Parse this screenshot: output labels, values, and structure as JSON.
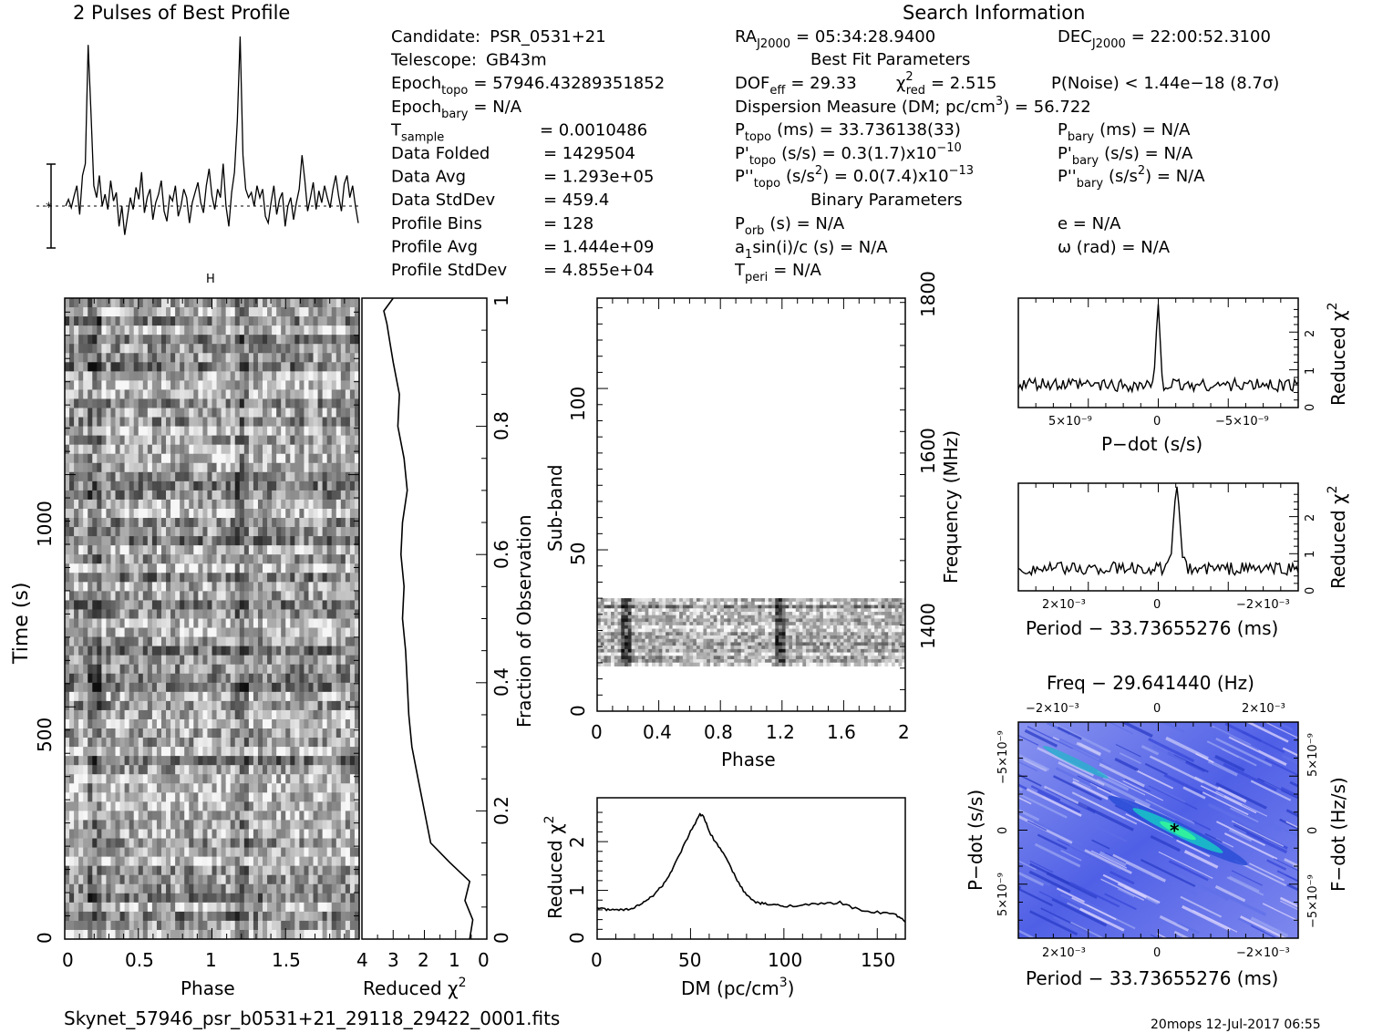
{
  "page": {
    "title": "2 Pulses of Best Profile",
    "search_title": "Search Information",
    "filename": "Skynet_57946_psr_b0531+21_29118_29422_0001.fits",
    "footer": "20mops  12-Jul-2017 06:55"
  },
  "info": {
    "col1": [
      {
        "label": "Candidate:",
        "sub": "",
        "value": "PSR_0531+21"
      },
      {
        "label": "Telescope:",
        "sub": "",
        "value": "GB43m"
      },
      {
        "label": "Epoch",
        "sub": "topo",
        "value": "= 57946.43289351852"
      },
      {
        "label": "Epoch",
        "sub": "bary",
        "value": "= N/A"
      },
      {
        "label": "T",
        "sub": "sample",
        "value": "=   0.0010486"
      },
      {
        "label": "Data Folded",
        "sub": "",
        "value": "=   1429504"
      },
      {
        "label": "Data Avg",
        "sub": "",
        "value": "=   1.293e+05"
      },
      {
        "label": "Data StdDev",
        "sub": "",
        "value": "=   459.4"
      },
      {
        "label": "Profile Bins",
        "sub": "",
        "value": "=   128"
      },
      {
        "label": "Profile Avg",
        "sub": "",
        "value": "=   1.444e+09"
      },
      {
        "label": "Profile StdDev",
        "sub": "",
        "value": "=   4.855e+04"
      }
    ],
    "ra": "RA",
    "ra_sub": "J2000",
    "ra_value": "= 05:34:28.9400",
    "dec": "DEC",
    "dec_sub": "J2000",
    "dec_value": "= 22:00:52.3100",
    "best_fit_title": "Best Fit Parameters",
    "dof": "DOF",
    "dof_sub": "eff",
    "dof_value": "= 29.33",
    "chi": "χ",
    "chi_sup": "2",
    "chi_sub": "red",
    "chi_value": "= 2.515",
    "pnoise": "P(Noise) < 1.44e−18   (8.7σ)",
    "dm_line": "Dispersion Measure (DM; pc/cm",
    "dm_sup": "3",
    "dm_value": ") = 56.722",
    "ptopo": "P",
    "ptopo_sub": "topo",
    "ptopo_value": "(ms) =  33.736138(33)",
    "pbary": "P",
    "pbary_sub": "bary",
    "pbary_value": "(ms) = N/A",
    "pdtopo": "P'",
    "pdtopo_sub": "topo",
    "pdtopo_value": "(s/s) =   0.3(1.7)x10",
    "pdtopo_exp": "−10",
    "pdbary": "P'",
    "pdbary_sub": "bary",
    "pdbary_value": "(s/s) = N/A",
    "pddtopo": "P''",
    "pddtopo_sub": "topo",
    "pddtopo_value": "(s/s",
    "pddtopo_sup": "2",
    "pddtopo_value2": ") = 0.0(7.4)x10",
    "pddtopo_exp": "−13",
    "pddbary": "P''",
    "pddbary_sub": "bary",
    "pddbary_value": "(s/s",
    "pddbary_sup": "2",
    "pddbary_value2": ") = N/A",
    "binary_title": "Binary Parameters",
    "porb": "P",
    "porb_sub": "orb",
    "porb_value": "(s) = N/A",
    "e_value": "e = N/A",
    "a1": "a",
    "a1_sub": "1",
    "a1_value": "sin(i)/c (s) = N/A",
    "omega_value": "ω (rad) = N/A",
    "tperi": "T",
    "tperi_sub": "peri",
    "tperi_value": "= N/A"
  },
  "axes": {
    "time_label": "Time (s)",
    "phase_label": "Phase",
    "redchi_label": "Reduced χ",
    "redchi_sup": "2",
    "fraction_label": "Fraction of Observation",
    "subband_label": "Sub-band",
    "frequency_label": "Frequency (MHz)",
    "dm_label": "DM (pc/cm",
    "dm_sup": "3",
    "dm_close": ")",
    "pdot_label": "P−dot (s/s)",
    "period_label": "Period − 33.73655276 (ms)",
    "freq_title": "Freq − 29.641440 (Hz)",
    "fdot_label": "F−dot (Hz/s)",
    "profile_marker": "H"
  },
  "chart_data": [
    {
      "id": "profile",
      "type": "line",
      "title": "2 Pulses of Best Profile",
      "x": [
        0,
        2
      ],
      "peaks_phase": [
        0.18,
        1.18
      ],
      "points": [
        0.0,
        0.04,
        -0.01,
        0.06,
        0.12,
        -0.05,
        0.18,
        0.25,
        0.95,
        0.55,
        0.12,
        0.05,
        0.18,
        0.0,
        0.07,
        -0.02,
        0.15,
        0.03,
        0.08,
        -0.12,
        0.0,
        -0.17,
        -0.06,
        0.05,
        -0.02,
        0.11,
        0.04,
        0.2,
        -0.04,
        0.05,
        0.1,
        -0.08,
        0.02,
        0.07,
        0.15,
        -0.03,
        -0.09,
        0.06,
        0.03,
        0.12,
        -0.06,
        0.0,
        0.1,
        0.05,
        -0.1,
        0.02,
        0.08,
        0.14,
        0.02,
        -0.04,
        0.12,
        0.22,
        0.06,
        -0.02,
        0.1,
        0.05,
        0.25,
        0.0,
        -0.12,
        0.08,
        0.2,
        0.5,
        1.0,
        0.3,
        0.1,
        0.05,
        0.08,
        0.0,
        0.12,
        0.05,
        0.1,
        -0.06,
        -0.1,
        0.02,
        0.12,
        -0.05,
        0.04,
        0.08,
        -0.12,
        0.0,
        0.05,
        -0.08,
        0.02,
        0.1,
        0.3,
        0.15,
        -0.03,
        0.05,
        0.14,
        -0.02,
        0.09,
        0.02,
        0.12,
        0.05,
        -0.01,
        0.1,
        0.18,
        0.06,
        -0.03,
        0.13,
        0.18,
        0.05,
        0.12,
        0.0,
        -0.1
      ]
    },
    {
      "id": "time_phase",
      "type": "heatmap",
      "xlabel": "Phase",
      "ylabel": "Time (s)",
      "xlim": [
        0,
        2
      ],
      "ylim": [
        0,
        1380
      ],
      "xticks": [
        "0",
        "0.5",
        "1",
        "1.5"
      ],
      "yticks": [
        "0",
        "500",
        "1000"
      ]
    },
    {
      "id": "redchi_time",
      "type": "line",
      "xlabel": "Reduced χ²",
      "ylabel": "Fraction of Observation",
      "xlim": [
        4,
        0
      ],
      "ylim": [
        0,
        1
      ],
      "xticks": [
        "4",
        "3",
        "2",
        "1",
        "0"
      ],
      "yticks": [
        "0",
        "0.2",
        "0.4",
        "0.6",
        "0.8",
        "1"
      ],
      "fraction": [
        0.0,
        0.03,
        0.06,
        0.09,
        0.12,
        0.15,
        0.2,
        0.25,
        0.3,
        0.35,
        0.4,
        0.45,
        0.5,
        0.55,
        0.6,
        0.65,
        0.7,
        0.75,
        0.8,
        0.85,
        0.9,
        0.93,
        0.96,
        0.98,
        1.0
      ],
      "redchi": [
        0.55,
        0.45,
        0.7,
        0.55,
        1.2,
        1.8,
        2.0,
        2.2,
        2.4,
        2.5,
        2.55,
        2.6,
        2.7,
        2.65,
        2.75,
        2.7,
        2.55,
        2.65,
        2.85,
        2.8,
        3.0,
        3.1,
        3.2,
        3.3,
        3.0
      ]
    },
    {
      "id": "subband_phase",
      "type": "heatmap",
      "xlabel": "Phase",
      "ylabel": "Sub-band",
      "ylabel_right": "Frequency (MHz)",
      "xlim": [
        0,
        2
      ],
      "ylim": [
        0,
        128
      ],
      "xticks": [
        "0",
        "0.4",
        "0.8",
        "1.2",
        "1.6",
        "2"
      ],
      "yticks": [
        "0",
        "50",
        "100"
      ],
      "freq_ticks": [
        "1400",
        "1600",
        "1800"
      ],
      "filled_subbands": [
        14,
        35
      ]
    },
    {
      "id": "dm_curve",
      "type": "line",
      "xlabel": "DM (pc/cm³)",
      "ylabel": "Reduced χ²",
      "xlim": [
        0,
        165
      ],
      "ylim": [
        0,
        2.9
      ],
      "xticks": [
        "0",
        "50",
        "100",
        "150"
      ],
      "yticks": [
        "0",
        "1",
        "2"
      ],
      "x": [
        0,
        5,
        10,
        15,
        20,
        25,
        30,
        35,
        40,
        45,
        50,
        55,
        57,
        60,
        65,
        70,
        75,
        80,
        85,
        90,
        95,
        100,
        110,
        120,
        130,
        140,
        150,
        160,
        165
      ],
      "y": [
        0.65,
        0.6,
        0.62,
        0.6,
        0.65,
        0.75,
        0.9,
        1.1,
        1.4,
        1.8,
        2.2,
        2.55,
        2.52,
        2.2,
        1.9,
        1.6,
        1.2,
        0.9,
        0.75,
        0.72,
        0.7,
        0.68,
        0.7,
        0.72,
        0.75,
        0.6,
        0.55,
        0.5,
        0.35
      ]
    },
    {
      "id": "pdot_curve",
      "type": "line",
      "xlabel": "P−dot (s/s)",
      "ylabel": "Reduced χ²",
      "xlim": [
        8.5e-09,
        -8.5e-09
      ],
      "ylim": [
        0,
        2.9
      ],
      "xticks": [
        "5×10⁻⁹",
        "0",
        "−5×10⁻⁹"
      ],
      "yticks": [
        "0",
        "1",
        "2"
      ],
      "peak": {
        "x": 0,
        "y": 2.7
      },
      "baseline": 0.6
    },
    {
      "id": "period_curve",
      "type": "line",
      "xlabel": "Period − 33.73655276 (ms)",
      "ylabel": "Reduced χ²",
      "xlim": [
        0.003,
        -0.003
      ],
      "ylim": [
        0,
        2.9
      ],
      "xticks": [
        "2×10⁻³",
        "0",
        "−2×10⁻³"
      ],
      "yticks": [
        "0",
        "1",
        "2"
      ],
      "peak": {
        "x": -0.0004,
        "y": 2.65
      },
      "baseline": 0.6
    },
    {
      "id": "period_pdot",
      "type": "heatmap",
      "title": "Freq − 29.641440 (Hz)",
      "xlabel": "Period − 33.73655276 (ms)",
      "ylabel": "P−dot (s/s)",
      "ylabel_right": "F−dot (Hz/s)",
      "xticks": [
        "2×10⁻³",
        "0",
        "−2×10⁻³"
      ],
      "top_ticks": [
        "−2×10⁻³",
        "0",
        "2×10⁻³"
      ],
      "yticks": [
        "−5×10⁻⁹",
        "0",
        "5×10⁻⁹"
      ],
      "right_ticks": [
        "5×10⁻⁹",
        "0",
        "−5×10⁻⁹"
      ],
      "best": {
        "period": -0.0004,
        "pdot": 0
      }
    }
  ]
}
